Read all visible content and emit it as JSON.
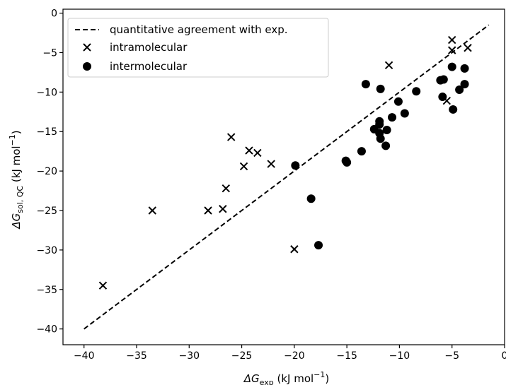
{
  "chart_data": {
    "type": "scatter",
    "title": "",
    "xlabel": {
      "symbol": "ΔG",
      "subscript": "exp",
      "unit_open": " (kJ mol",
      "unit_sup": "−1",
      "unit_close": ")"
    },
    "ylabel": {
      "symbol": "ΔG",
      "subscript": "sol, QC",
      "unit_open": " (kJ mol",
      "unit_sup": "−1",
      "unit_close": ")"
    },
    "xlim": [
      -42,
      0
    ],
    "ylim": [
      -42,
      0.5
    ],
    "xticks": [
      -40,
      -35,
      -30,
      -25,
      -20,
      -15,
      -10,
      -5,
      0
    ],
    "xtick_labels": [
      "−40",
      "−35",
      "−30",
      "−25",
      "−20",
      "−15",
      "−10",
      "−5",
      "0"
    ],
    "yticks": [
      -40,
      -35,
      -30,
      -25,
      -20,
      -15,
      -10,
      -5,
      0
    ],
    "ytick_labels": [
      "−40",
      "−35",
      "−30",
      "−25",
      "−20",
      "−15",
      "−10",
      "−5",
      "0"
    ],
    "grid": false,
    "legend_placement": "top-left",
    "reference_line": {
      "name": "quantitative agreement with exp.",
      "style": "dashed",
      "color": "#000000",
      "points": [
        [
          -40,
          -40
        ],
        [
          -1.5,
          -1.5
        ]
      ]
    },
    "series": [
      {
        "name": "intramolecular",
        "marker": "x",
        "color": "#000000",
        "points": [
          [
            -38.2,
            -34.5
          ],
          [
            -33.5,
            -25.0
          ],
          [
            -28.2,
            -25.0
          ],
          [
            -26.8,
            -24.8
          ],
          [
            -26.5,
            -22.2
          ],
          [
            -26.0,
            -15.7
          ],
          [
            -24.8,
            -19.4
          ],
          [
            -24.3,
            -17.4
          ],
          [
            -23.5,
            -17.7
          ],
          [
            -22.2,
            -19.1
          ],
          [
            -20.0,
            -29.9
          ],
          [
            -11.0,
            -6.6
          ],
          [
            -5.5,
            -11.1
          ],
          [
            -5.0,
            -3.4
          ],
          [
            -5.0,
            -4.7
          ],
          [
            -3.5,
            -4.4
          ]
        ]
      },
      {
        "name": "intermolecular",
        "marker": "circle",
        "color": "#000000",
        "points": [
          [
            -19.9,
            -19.3
          ],
          [
            -18.4,
            -23.5
          ],
          [
            -17.7,
            -29.4
          ],
          [
            -15.1,
            -18.7
          ],
          [
            -15.0,
            -18.9
          ],
          [
            -13.6,
            -17.5
          ],
          [
            -13.2,
            -9.0
          ],
          [
            -12.4,
            -14.7
          ],
          [
            -11.9,
            -13.7
          ],
          [
            -11.9,
            -14.1
          ],
          [
            -11.9,
            -15.2
          ],
          [
            -11.8,
            -9.6
          ],
          [
            -11.8,
            -15.9
          ],
          [
            -11.3,
            -16.8
          ],
          [
            -11.2,
            -14.8
          ],
          [
            -10.7,
            -13.2
          ],
          [
            -10.1,
            -11.2
          ],
          [
            -9.5,
            -12.7
          ],
          [
            -8.4,
            -9.9
          ],
          [
            -6.1,
            -8.5
          ],
          [
            -5.9,
            -10.6
          ],
          [
            -5.8,
            -8.4
          ],
          [
            -5.0,
            -6.8
          ],
          [
            -4.9,
            -12.2
          ],
          [
            -4.3,
            -9.7
          ],
          [
            -3.8,
            -7.0
          ],
          [
            -3.8,
            -9.0
          ]
        ]
      }
    ]
  }
}
